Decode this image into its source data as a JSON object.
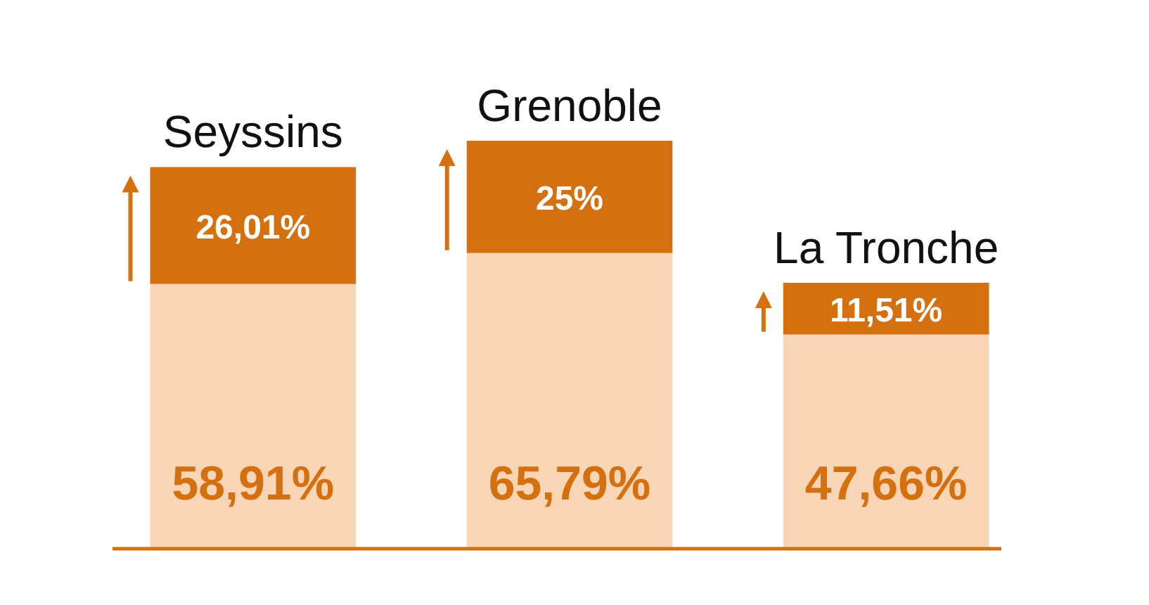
{
  "chart_data": {
    "type": "bar",
    "stacked": true,
    "categories": [
      "Seyssins",
      "Grenoble",
      "La Tronche"
    ],
    "series": [
      {
        "color": "#f8d5b5",
        "values": [
          58.91,
          65.79,
          47.66
        ],
        "value_labels": [
          "58,91%",
          "65,79%",
          "47,66%"
        ]
      },
      {
        "color": "#d4700f",
        "values": [
          26.01,
          25,
          11.51
        ],
        "value_labels": [
          "26,01%",
          "25%",
          "11,51%"
        ]
      }
    ]
  }
}
